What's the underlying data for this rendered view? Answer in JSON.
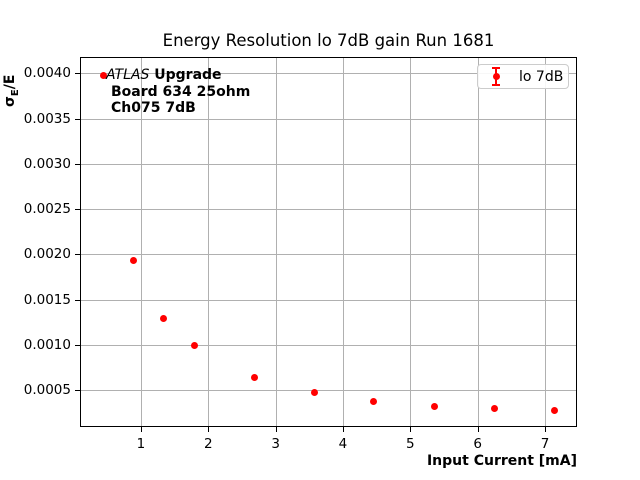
{
  "title": "Energy Resolution lo 7dB gain Run 1681",
  "x_axis_label": "Input Current [mA]",
  "y_axis_label": {
    "sigma": "σ",
    "subscript": "E",
    "rest": "/E"
  },
  "legend": {
    "label": "lo 7dB"
  },
  "annotation": {
    "atlas": "ATLAS",
    "upgrade": "Upgrade",
    "line2": "Board 634 25ohm",
    "line3": "Ch075 7dB"
  },
  "colors": {
    "series": "#ff0000",
    "grid": "#b0b0b0",
    "axes": "#000000",
    "legend_border": "#cccccc",
    "text": "#000000"
  },
  "chart_data": {
    "type": "scatter",
    "title": "Energy Resolution lo 7dB gain Run 1681",
    "xlabel": "Input Current [mA]",
    "ylabel": "σ_E/E",
    "xlim": [
      0.11,
      7.49
    ],
    "ylim": [
      8e-05,
      0.00417
    ],
    "grid": true,
    "legend_position": "upper right",
    "x_ticks": [
      {
        "value": 1,
        "label": "1"
      },
      {
        "value": 2,
        "label": "2"
      },
      {
        "value": 3,
        "label": "3"
      },
      {
        "value": 4,
        "label": "4"
      },
      {
        "value": 5,
        "label": "5"
      },
      {
        "value": 6,
        "label": "6"
      },
      {
        "value": 7,
        "label": "7"
      }
    ],
    "y_ticks": [
      {
        "value": 0.0005,
        "label": "0.0005"
      },
      {
        "value": 0.001,
        "label": "0.0010"
      },
      {
        "value": 0.0015,
        "label": "0.0015"
      },
      {
        "value": 0.002,
        "label": "0.0020"
      },
      {
        "value": 0.0025,
        "label": "0.0025"
      },
      {
        "value": 0.003,
        "label": "0.0030"
      },
      {
        "value": 0.0035,
        "label": "0.0035"
      },
      {
        "value": 0.004,
        "label": "0.0040"
      }
    ],
    "series": [
      {
        "name": "lo 7dB",
        "color": "#ff0000",
        "marker": "errorbar-dot",
        "x": [
          0.45,
          0.89,
          1.34,
          1.79,
          2.68,
          3.57,
          4.46,
          5.36,
          6.25,
          7.14
        ],
        "y": [
          0.00398,
          0.00193,
          0.00129,
          0.00099,
          0.00064,
          0.00047,
          0.00037,
          0.00032,
          0.0003,
          0.00027
        ]
      }
    ]
  }
}
